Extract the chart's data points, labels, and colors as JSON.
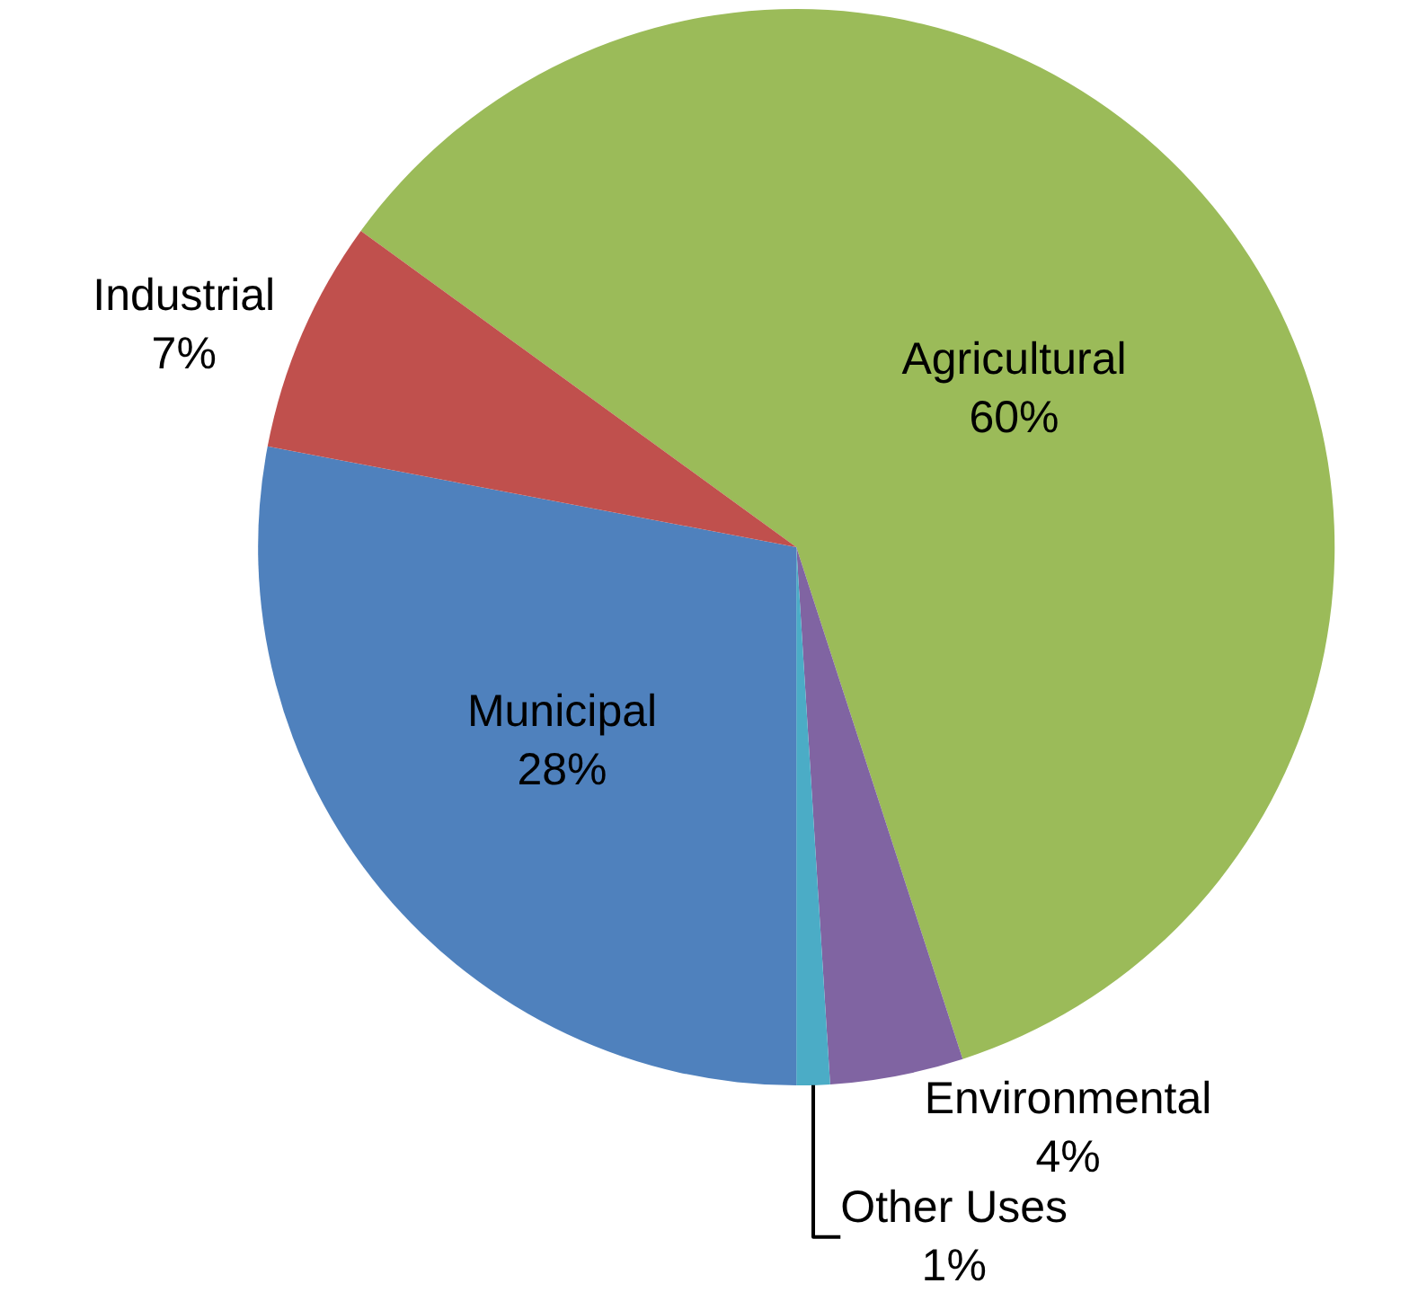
{
  "chart_data": {
    "type": "pie",
    "categories": [
      "Agricultural",
      "Environmental",
      "Other Uses",
      "Municipal",
      "Industrial"
    ],
    "values": [
      60,
      4,
      1,
      28,
      7
    ],
    "value_labels": [
      "60%",
      "4%",
      "1%",
      "28%",
      "7%"
    ],
    "colors": [
      "#9bbb59",
      "#8064a2",
      "#4bacc6",
      "#4f81bd",
      "#c0504d"
    ],
    "legend": false
  }
}
